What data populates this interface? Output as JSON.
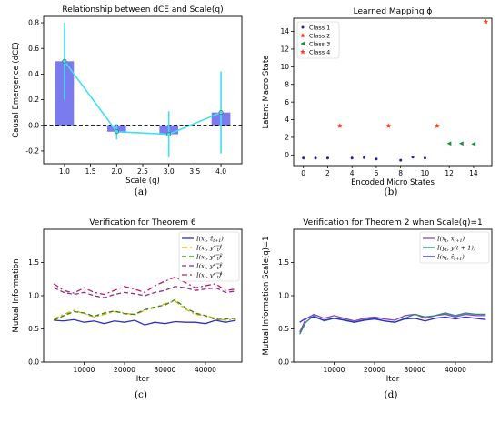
{
  "chart_data": [
    {
      "panel": "(a)",
      "type": "bar",
      "title": "Relationship between dCE and Scale(q)",
      "xlabel": "Scale (q)",
      "ylabel": "Causal Emergence (dCE)",
      "xlim": [
        0.6,
        4.4
      ],
      "ylim": [
        -0.3,
        0.85
      ],
      "xticks": [
        1.0,
        1.5,
        2.0,
        2.5,
        3.0,
        3.5,
        4.0
      ],
      "yticks": [
        -0.2,
        0.0,
        0.2,
        0.4,
        0.6,
        0.8
      ],
      "x": [
        1,
        2,
        3,
        4
      ],
      "values": [
        0.5,
        -0.05,
        -0.07,
        0.1
      ],
      "error": [
        0.3,
        0.06,
        0.18,
        0.32
      ],
      "reference_line": 0.0,
      "bar_color": "#7b7bf0",
      "line_color": "#3fe0f0",
      "grid": false
    },
    {
      "panel": "(b)",
      "type": "scatter",
      "title": "Learned Mapping ϕ",
      "xlabel": "Encoded Micro States",
      "ylabel": "Latent Macro State",
      "xlim": [
        -0.8,
        15.5
      ],
      "ylim": [
        -1.2,
        15.5
      ],
      "xticks": [
        0,
        2,
        4,
        6,
        8,
        10,
        12,
        14
      ],
      "yticks": [
        0,
        2,
        4,
        6,
        8,
        10,
        12,
        14
      ],
      "legend_position": "top-left",
      "series": [
        {
          "name": "Class 1",
          "color": "#1f1fa0",
          "marker": "dot",
          "x": [
            0,
            1,
            2,
            4,
            5,
            6,
            8,
            9,
            10
          ],
          "y": [
            -0.35,
            -0.35,
            -0.35,
            -0.35,
            -0.3,
            -0.45,
            -0.6,
            -0.25,
            -0.35
          ]
        },
        {
          "name": "Class 2",
          "color": "#ff3a1a",
          "marker": "star",
          "x": [
            3,
            7,
            11
          ],
          "y": [
            3.3,
            3.3,
            3.3
          ]
        },
        {
          "name": "Class 3",
          "color": "#1e8c3a",
          "marker": "triangle-left",
          "x": [
            12,
            13,
            14
          ],
          "y": [
            1.3,
            1.3,
            1.25
          ]
        },
        {
          "name": "Class 4",
          "color": "#ff3a1a",
          "marker": "star",
          "x": [
            15
          ],
          "y": [
            15.1
          ]
        }
      ]
    },
    {
      "panel": "(c)",
      "type": "line",
      "title": "Verification for Theorem 6",
      "xlabel": "Iter",
      "ylabel": "Mutual Information",
      "xlim": [
        0,
        49000
      ],
      "ylim": [
        0,
        2.0
      ],
      "xticks": [
        10000,
        20000,
        30000,
        40000
      ],
      "yticks": [
        0.0,
        0.5,
        1.0,
        1.5
      ],
      "legend_position": "top-right",
      "x": [
        2500,
        5000,
        7500,
        10000,
        12500,
        15000,
        17500,
        20000,
        22500,
        25000,
        27500,
        30000,
        32500,
        35000,
        37500,
        40000,
        42500,
        45000,
        47500
      ],
      "series": [
        {
          "name": "I(x_t, ẑ_{t+1})",
          "legend_main": "I(x",
          "legend_sub": "t",
          "legend_after": ", ẑ",
          "legend_sub2": "t+1",
          "legend_sup2": "",
          "color": "#2d2dc8",
          "dash": "",
          "values": [
            0.63,
            0.62,
            0.64,
            0.6,
            0.62,
            0.58,
            0.62,
            0.6,
            0.63,
            0.56,
            0.6,
            0.58,
            0.61,
            0.6,
            0.6,
            0.58,
            0.63,
            0.6,
            0.63
          ]
        },
        {
          "name": "I(x_t, y_t^{q=1})",
          "legend_main": "I(x",
          "legend_sub": "t",
          "legend_after": ", y",
          "legend_sub2": "t",
          "legend_sup2": "q=1",
          "color": "#d7b400",
          "dash": "6,3,2,3",
          "values": [
            0.65,
            0.72,
            0.78,
            0.73,
            0.68,
            0.72,
            0.76,
            0.74,
            0.71,
            0.78,
            0.82,
            0.88,
            0.92,
            0.8,
            0.72,
            0.7,
            0.66,
            0.63,
            0.65
          ]
        },
        {
          "name": "I(x_t, y_t^{q=2})",
          "legend_main": "I(x",
          "legend_sub": "t",
          "legend_after": ", y",
          "legend_sub2": "t",
          "legend_sup2": "q=2",
          "color": "#3a7d1a",
          "dash": "5,3",
          "values": [
            0.63,
            0.7,
            0.76,
            0.74,
            0.69,
            0.74,
            0.77,
            0.73,
            0.72,
            0.79,
            0.83,
            0.86,
            0.94,
            0.82,
            0.74,
            0.7,
            0.64,
            0.65,
            0.66
          ]
        },
        {
          "name": "I(x_t, y_t^{q=3})",
          "legend_main": "I(x",
          "legend_sub": "t",
          "legend_after": ", y",
          "legend_sub2": "t",
          "legend_sup2": "q=3",
          "color": "#8b2e8b",
          "dash": "5,3",
          "values": [
            1.12,
            1.05,
            1.02,
            1.05,
            1.0,
            0.97,
            1.02,
            1.05,
            1.03,
            1.0,
            1.05,
            1.08,
            1.14,
            1.12,
            1.08,
            1.1,
            1.12,
            1.05,
            1.07
          ]
        },
        {
          "name": "I(x_t, y_t^{q=4})",
          "legend_main": "I(x",
          "legend_sub": "t",
          "legend_after": ", y",
          "legend_sub2": "t",
          "legend_sup2": "q=4",
          "color": "#c0186a",
          "dash": "6,3,2,3",
          "values": [
            1.18,
            1.08,
            1.04,
            1.12,
            1.05,
            1.02,
            1.08,
            1.14,
            1.1,
            1.05,
            1.15,
            1.22,
            1.28,
            1.2,
            1.12,
            1.15,
            1.18,
            1.08,
            1.1
          ]
        }
      ]
    },
    {
      "panel": "(d)",
      "type": "line",
      "title": "Verification for Theorem 2 when Scale(q)=1",
      "xlabel": "Iter",
      "ylabel": "Mutual Information Scale(q)=1",
      "xlim": [
        0,
        49000
      ],
      "ylim": [
        0,
        2.0
      ],
      "xticks": [
        10000,
        20000,
        30000,
        40000
      ],
      "yticks": [
        0.0,
        0.5,
        1.0,
        1.5
      ],
      "legend_position": "top-right",
      "x": [
        1500,
        3000,
        5000,
        7500,
        10000,
        12500,
        15000,
        17500,
        20000,
        22500,
        25000,
        27500,
        30000,
        32500,
        35000,
        37500,
        40000,
        42500,
        45000,
        47500
      ],
      "series": [
        {
          "name": "I(x_t, x_{t+1})",
          "legend_main": "I(x",
          "legend_sub": "t",
          "legend_after": ", x",
          "legend_sub2": "t+1",
          "legend_sup2": "",
          "color": "#8a44c8",
          "dash": "",
          "values": [
            0.45,
            0.65,
            0.72,
            0.66,
            0.7,
            0.66,
            0.62,
            0.66,
            0.68,
            0.65,
            0.63,
            0.7,
            0.72,
            0.66,
            0.7,
            0.72,
            0.68,
            0.72,
            0.7,
            0.7
          ]
        },
        {
          "name": "I(y_t, y(t+1))",
          "legend_main": "I(y",
          "legend_sub": "t",
          "legend_after": ", y(t + 1))",
          "legend_sub2": "",
          "legend_sup2": "",
          "color": "#2e8a7a",
          "dash": "",
          "values": [
            0.42,
            0.6,
            0.7,
            0.62,
            0.66,
            0.64,
            0.6,
            0.64,
            0.66,
            0.62,
            0.6,
            0.66,
            0.72,
            0.68,
            0.7,
            0.74,
            0.7,
            0.74,
            0.72,
            0.72
          ]
        },
        {
          "name": "I(x_t, ẑ_{t+1})",
          "legend_main": "I(x",
          "legend_sub": "t",
          "legend_after": ", ẑ",
          "legend_sub2": "t+1",
          "legend_sup2": "",
          "color": "#2d2dc8",
          "dash": "",
          "values": [
            0.6,
            0.66,
            0.68,
            0.63,
            0.66,
            0.63,
            0.6,
            0.63,
            0.65,
            0.62,
            0.6,
            0.65,
            0.66,
            0.62,
            0.66,
            0.68,
            0.65,
            0.68,
            0.66,
            0.64
          ]
        }
      ]
    }
  ]
}
